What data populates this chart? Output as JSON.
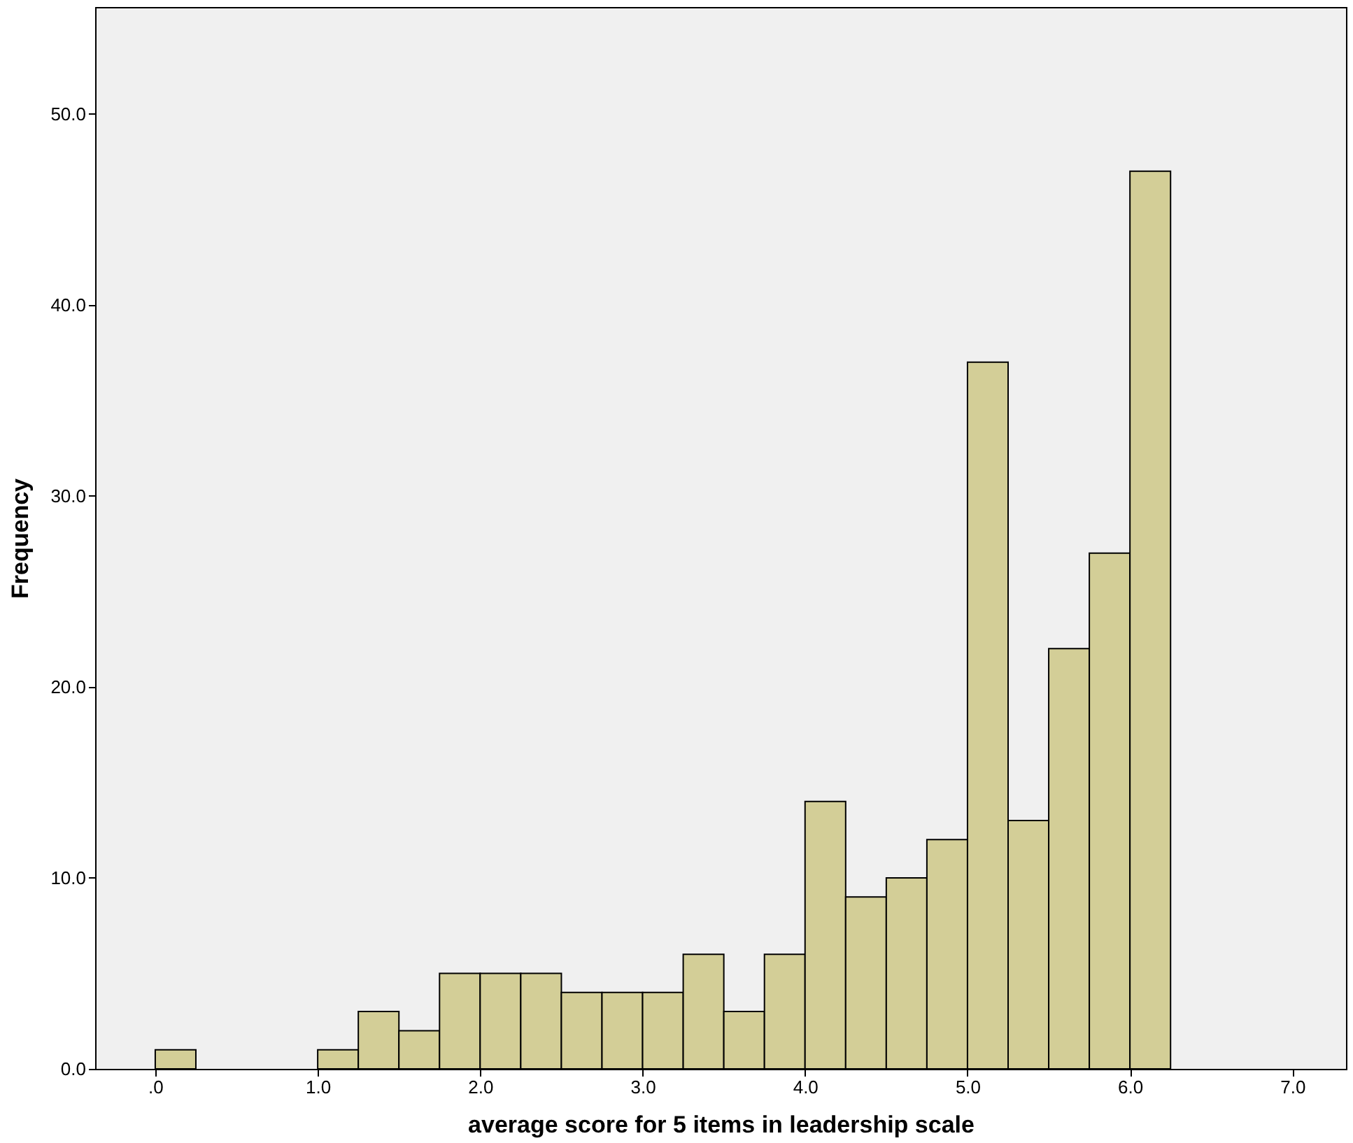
{
  "chart_data": {
    "type": "histogram",
    "xlabel": "average score for 5 items in leadership scale",
    "ylabel": "Frequency",
    "bins": [
      0,
      0.25,
      0.5,
      0.75,
      1.0,
      1.25,
      1.5,
      1.75,
      2.0,
      2.25,
      2.5,
      2.75,
      3.0,
      3.25,
      3.5,
      3.75,
      4.0,
      4.25,
      4.5,
      4.75,
      5.0,
      5.25,
      5.5,
      5.75,
      6.0,
      6.25
    ],
    "values": [
      1,
      0,
      0,
      0,
      1,
      3,
      2,
      5,
      5,
      5,
      4,
      4,
      4,
      6,
      3,
      6,
      14,
      9,
      10,
      12,
      37,
      13,
      22,
      27,
      47
    ],
    "color": "#d3ce97",
    "xlim": [
      -0.37,
      7.33
    ],
    "ylim": [
      0,
      55.6
    ],
    "xticks": [
      {
        "value": 0,
        "label": ".0"
      },
      {
        "value": 1,
        "label": "1.0"
      },
      {
        "value": 2,
        "label": "2.0"
      },
      {
        "value": 3,
        "label": "3.0"
      },
      {
        "value": 4,
        "label": "4.0"
      },
      {
        "value": 5,
        "label": "5.0"
      },
      {
        "value": 6,
        "label": "6.0"
      },
      {
        "value": 7,
        "label": "7.0"
      }
    ],
    "yticks": [
      {
        "value": 0,
        "label": "0.0"
      },
      {
        "value": 10,
        "label": "10.0"
      },
      {
        "value": 20,
        "label": "20.0"
      },
      {
        "value": 30,
        "label": "30.0"
      },
      {
        "value": 40,
        "label": "40.0"
      },
      {
        "value": 50,
        "label": "50.0"
      }
    ],
    "grid": false
  }
}
